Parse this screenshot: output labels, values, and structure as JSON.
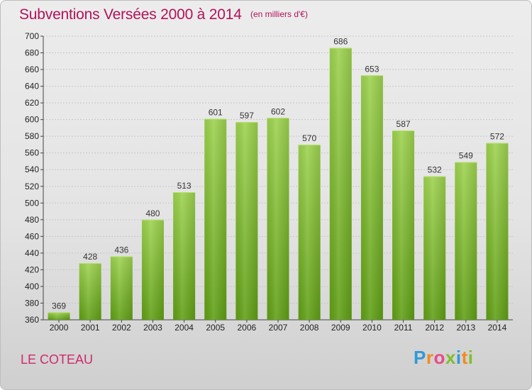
{
  "title": "Subventions Versées 2000 à 2014",
  "subtitle": "(en milliers d'€)",
  "commune": "LE COTEAU",
  "logo": {
    "letters": [
      "P",
      "r",
      "o",
      "x",
      "i",
      "t",
      "i"
    ],
    "colors": [
      "#2f9ad8",
      "#f28a1e",
      "#e84a8a",
      "#7fbe2e",
      "#2f9ad8",
      "#f28a1e",
      "#7fbe2e"
    ]
  },
  "colors": {
    "title": "#b0135a",
    "bar_top": "#9dd24f",
    "bar_bottom": "#5f9e14"
  },
  "chart_data": {
    "type": "bar",
    "title": "Subventions Versées 2000 à 2014",
    "categories": [
      "2000",
      "2001",
      "2002",
      "2003",
      "2004",
      "2005",
      "2006",
      "2007",
      "2008",
      "2009",
      "2010",
      "2011",
      "2012",
      "2013",
      "2014"
    ],
    "values": [
      369,
      428,
      436,
      480,
      513,
      601,
      597,
      602,
      570,
      686,
      653,
      587,
      532,
      549,
      572
    ],
    "xlabel": "",
    "ylabel": "",
    "ylim": [
      360,
      700
    ],
    "yticks": [
      360,
      380,
      400,
      420,
      440,
      460,
      480,
      500,
      520,
      540,
      560,
      580,
      600,
      620,
      640,
      660,
      680,
      700
    ],
    "grid": true,
    "legend": "none"
  }
}
